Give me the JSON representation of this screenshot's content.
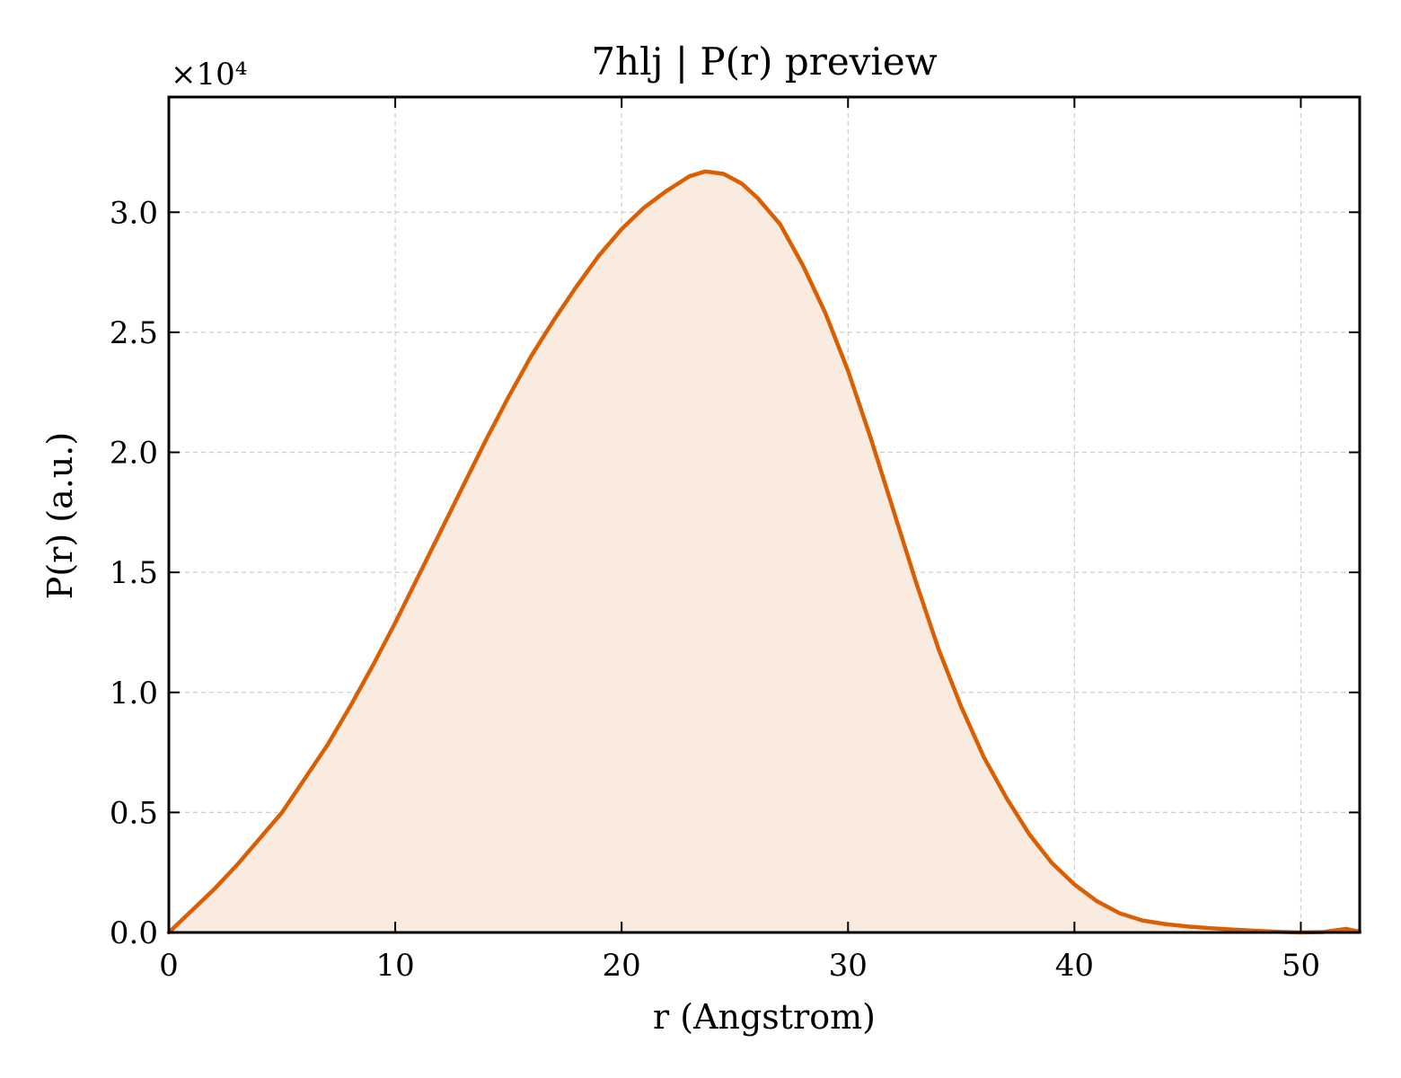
{
  "chart_data": {
    "type": "area",
    "title": "7hlj | P(r) preview",
    "xlabel": "r (Angstrom)",
    "ylabel": "P(r) (a.u.)",
    "y_multiplier_label": "×10⁴",
    "y_scale": 10000,
    "xlim": [
      0,
      52.6
    ],
    "ylim": [
      0,
      34800
    ],
    "x_ticks": [
      0,
      10,
      20,
      30,
      40,
      50
    ],
    "x_tick_labels": [
      "0",
      "10",
      "20",
      "30",
      "40",
      "50"
    ],
    "y_ticks": [
      0,
      5000,
      10000,
      15000,
      20000,
      25000,
      30000
    ],
    "y_tick_labels": [
      "0.0",
      "0.5",
      "1.0",
      "1.5",
      "2.0",
      "2.5",
      "3.0"
    ],
    "grid": true,
    "line_color": "#d95f02",
    "fill_color": "#f9ebe0",
    "series": [
      {
        "x": [
          0,
          1,
          2,
          3,
          4,
          5,
          6,
          7,
          8,
          9,
          10,
          11,
          12,
          13,
          14,
          15,
          16,
          17,
          18,
          19,
          20,
          21,
          22,
          23,
          23.7,
          24.5,
          25.3,
          26,
          27,
          28,
          29,
          30,
          31,
          32,
          33,
          34,
          35,
          36,
          37,
          38,
          39,
          40,
          41,
          42,
          43,
          44,
          45,
          46,
          47,
          48,
          49,
          50,
          51,
          52,
          52.6
        ],
        "y": [
          0,
          900,
          1800,
          2800,
          3900,
          5000,
          6400,
          7800,
          9400,
          11100,
          12900,
          14800,
          16700,
          18600,
          20500,
          22300,
          24000,
          25500,
          26900,
          28200,
          29300,
          30200,
          30900,
          31500,
          31700,
          31600,
          31200,
          30600,
          29500,
          27800,
          25800,
          23400,
          20600,
          17600,
          14600,
          11800,
          9400,
          7300,
          5600,
          4100,
          2900,
          2000,
          1300,
          800,
          500,
          350,
          250,
          180,
          120,
          70,
          30,
          0,
          20,
          150,
          30
        ]
      }
    ]
  }
}
